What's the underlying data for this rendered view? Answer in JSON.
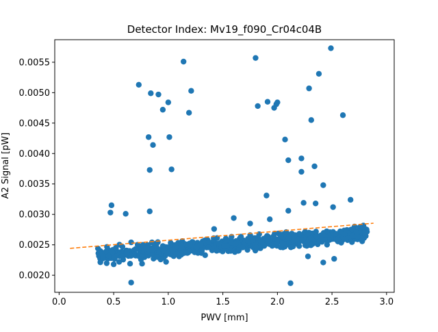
{
  "chart_data": {
    "type": "scatter",
    "title": "Detector Index: Mv19_f090_Cr04c04B",
    "xlabel": "PWV [mm]",
    "ylabel": "A2 Signal [pW]",
    "xlim": [
      -0.04,
      3.07
    ],
    "ylim": [
      0.00172,
      0.00587
    ],
    "xticks": [
      0.0,
      0.5,
      1.0,
      1.5,
      2.0,
      2.5,
      3.0
    ],
    "xtick_labels": [
      "0.0",
      "0.5",
      "1.0",
      "1.5",
      "2.0",
      "2.5",
      "3.0"
    ],
    "yticks": [
      0.002,
      0.0025,
      0.003,
      0.0035,
      0.004,
      0.0045,
      0.005,
      0.0055
    ],
    "ytick_labels": [
      "0.0020",
      "0.0025",
      "0.0030",
      "0.0035",
      "0.0040",
      "0.0045",
      "0.0050",
      "0.0055"
    ],
    "point_color": "#1f77b4",
    "fit_color": "#ff7f0e",
    "fit_line": {
      "x": [
        0.1,
        2.88
      ],
      "y": [
        0.002442,
        0.002855
      ],
      "style": "dashed"
    },
    "band_model": {
      "count": 720,
      "x_range": [
        0.35,
        2.82
      ],
      "intercept": 0.00228,
      "slope": 0.000144,
      "spread": 0.00017,
      "seed": 19
    },
    "points": [
      [
        0.47,
        0.00303
      ],
      [
        0.48,
        0.00315
      ],
      [
        0.61,
        0.00301
      ],
      [
        0.73,
        0.00513
      ],
      [
        0.82,
        0.00427
      ],
      [
        0.83,
        0.00373
      ],
      [
        0.83,
        0.00305
      ],
      [
        0.84,
        0.00499
      ],
      [
        0.86,
        0.00414
      ],
      [
        0.91,
        0.00497
      ],
      [
        0.95,
        0.00472
      ],
      [
        1.0,
        0.00484
      ],
      [
        1.01,
        0.00427
      ],
      [
        1.03,
        0.00374
      ],
      [
        1.14,
        0.00551
      ],
      [
        1.19,
        0.00467
      ],
      [
        1.21,
        0.00503
      ],
      [
        1.8,
        0.00557
      ],
      [
        1.82,
        0.00478
      ],
      [
        1.9,
        0.00331
      ],
      [
        1.91,
        0.00485
      ],
      [
        1.97,
        0.00475
      ],
      [
        1.99,
        0.00481
      ],
      [
        2.0,
        0.00484
      ],
      [
        2.07,
        0.00423
      ],
      [
        2.1,
        0.00389
      ],
      [
        2.22,
        0.00392
      ],
      [
        2.22,
        0.0037
      ],
      [
        2.24,
        0.00319
      ],
      [
        2.29,
        0.00507
      ],
      [
        2.31,
        0.00455
      ],
      [
        2.34,
        0.00379
      ],
      [
        2.38,
        0.00531
      ],
      [
        2.42,
        0.00348
      ],
      [
        2.49,
        0.00573
      ],
      [
        2.51,
        0.00312
      ],
      [
        2.6,
        0.00463
      ],
      [
        2.67,
        0.00324
      ],
      [
        2.35,
        0.00318
      ],
      [
        2.1,
        0.00306
      ],
      [
        0.66,
        0.00188
      ],
      [
        2.12,
        0.00187
      ],
      [
        0.66,
        0.00254
      ],
      [
        0.65,
        0.00219
      ],
      [
        0.45,
        0.00232
      ],
      [
        0.5,
        0.00218
      ],
      [
        0.55,
        0.00222
      ],
      [
        0.58,
        0.00231
      ],
      [
        0.75,
        0.00226
      ],
      [
        0.76,
        0.00219
      ],
      [
        0.8,
        0.00244
      ],
      [
        0.85,
        0.00242
      ],
      [
        0.9,
        0.0023
      ],
      [
        0.93,
        0.00226
      ],
      [
        0.98,
        0.00222
      ],
      [
        2.28,
        0.00231
      ],
      [
        2.42,
        0.00221
      ],
      [
        2.52,
        0.00227
      ],
      [
        1.6,
        0.00294
      ],
      [
        1.42,
        0.00276
      ],
      [
        0.36,
        0.00236
      ],
      [
        0.4,
        0.00234
      ],
      [
        0.43,
        0.00239
      ],
      [
        0.52,
        0.00245
      ],
      [
        0.62,
        0.00236
      ],
      [
        0.7,
        0.00243
      ],
      [
        0.88,
        0.00249
      ],
      [
        0.95,
        0.00248
      ],
      [
        1.75,
        0.00285
      ],
      [
        1.93,
        0.00292
      ]
    ]
  }
}
